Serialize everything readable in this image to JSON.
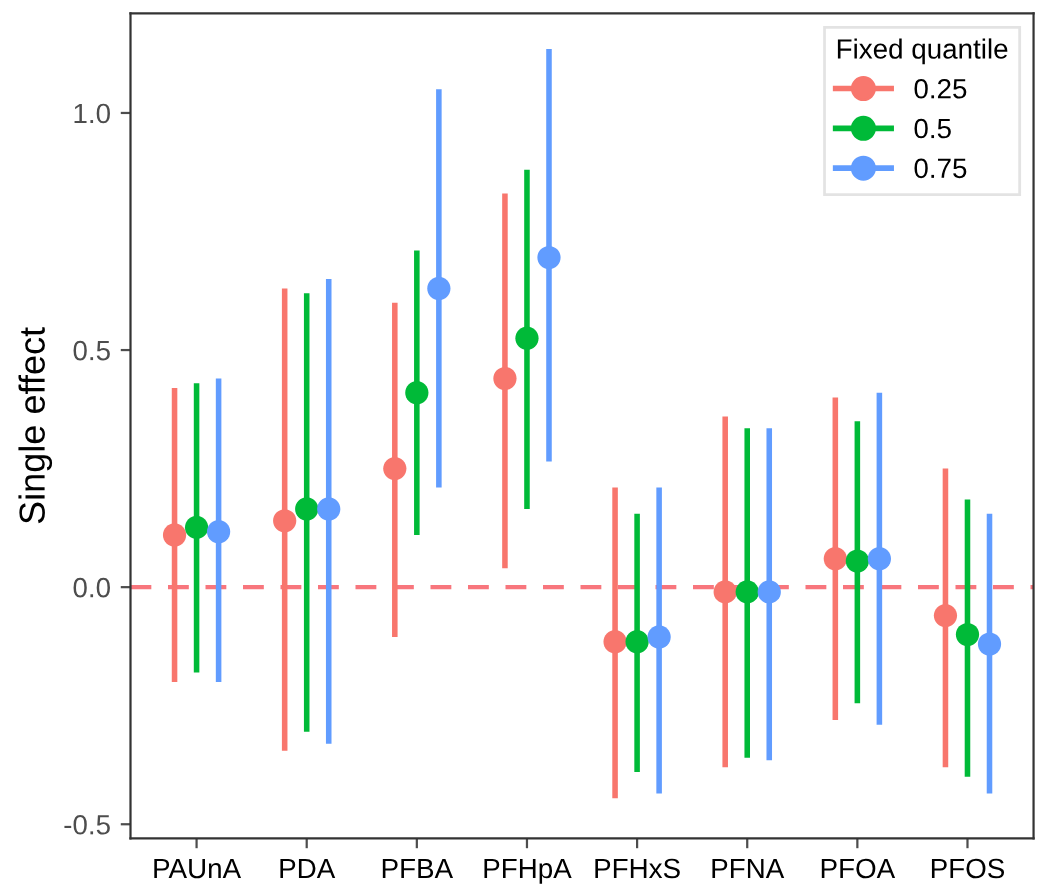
{
  "chart_data": {
    "type": "scatter",
    "ylabel": "Single effect",
    "legend_title": "Fixed quantile",
    "legend": "top right",
    "grid": false,
    "marker": "circle",
    "categories": [
      "PAUnA",
      "PDA",
      "PFBA",
      "PFHpA",
      "PFHxS",
      "PFNA",
      "PFOA",
      "PFOS"
    ],
    "ylim": [
      -0.53,
      1.21
    ],
    "yticks": [
      {
        "value": -0.5,
        "label": "-0.5"
      },
      {
        "value": 0,
        "label": "0.0"
      },
      {
        "value": 0.5,
        "label": "0.5"
      },
      {
        "value": 1,
        "label": "1.0"
      }
    ],
    "ref_lines": [
      {
        "axis": "y",
        "value": 0,
        "color": "#f8767d",
        "line_style": "dashed"
      }
    ],
    "series": [
      {
        "name": "0.25",
        "color": "#f8766d",
        "values": [
          0.11,
          0.14,
          0.25,
          0.44,
          -0.115,
          -0.01,
          0.06,
          -0.06
        ],
        "errors": [
          [
            -0.2,
            0.42
          ],
          [
            -0.345,
            0.63
          ],
          [
            -0.105,
            0.6
          ],
          [
            0.04,
            0.83
          ],
          [
            -0.445,
            0.21
          ],
          [
            -0.38,
            0.36
          ],
          [
            -0.28,
            0.4
          ],
          [
            -0.38,
            0.25
          ]
        ]
      },
      {
        "name": "0.5",
        "color": "#00ba38",
        "values": [
          0.126,
          0.165,
          0.41,
          0.525,
          -0.115,
          -0.01,
          0.055,
          -0.1
        ],
        "errors": [
          [
            -0.18,
            0.43
          ],
          [
            -0.305,
            0.62
          ],
          [
            0.11,
            0.71
          ],
          [
            0.165,
            0.88
          ],
          [
            -0.39,
            0.155
          ],
          [
            -0.36,
            0.335
          ],
          [
            -0.245,
            0.35
          ],
          [
            -0.4,
            0.185
          ]
        ]
      },
      {
        "name": "0.75",
        "color": "#619cff",
        "values": [
          0.117,
          0.165,
          0.63,
          0.695,
          -0.105,
          -0.01,
          0.06,
          -0.12
        ],
        "errors": [
          [
            -0.2,
            0.44
          ],
          [
            -0.33,
            0.65
          ],
          [
            0.21,
            1.05
          ],
          [
            0.265,
            1.135
          ],
          [
            -0.435,
            0.21
          ],
          [
            -0.365,
            0.335
          ],
          [
            -0.29,
            0.41
          ],
          [
            -0.435,
            0.155
          ]
        ]
      }
    ]
  }
}
